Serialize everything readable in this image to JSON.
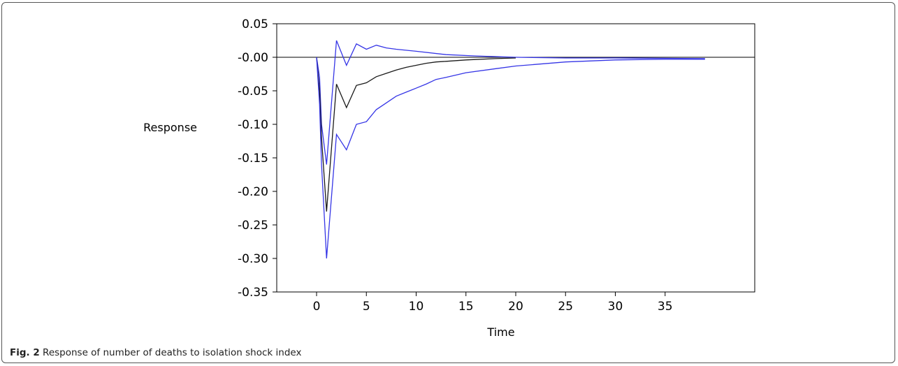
{
  "chart_data": {
    "type": "line",
    "title": "",
    "xlabel": "Time",
    "ylabel": "Response",
    "xlim": [
      -4,
      44
    ],
    "ylim": [
      -0.35,
      0.05
    ],
    "x_ticks": [
      0,
      5,
      10,
      15,
      20,
      25,
      30,
      35
    ],
    "y_ticks": [
      0.05,
      0.0,
      -0.05,
      -0.1,
      -0.15,
      -0.2,
      -0.25,
      -0.3,
      -0.35
    ],
    "y_tick_labels": [
      "0.05",
      "-0.00",
      "-0.05",
      "-0.10",
      "-0.15",
      "-0.20",
      "-0.25",
      "-0.30",
      "-0.35"
    ],
    "zero_line": true,
    "grid": false,
    "series": [
      {
        "role": "upper-band",
        "color": "#3535e6",
        "x": [
          0,
          0.3,
          0.5,
          1,
          2,
          3,
          4,
          5,
          6,
          7,
          8,
          10,
          13,
          16,
          20,
          25,
          30,
          39
        ],
        "y": [
          0.0,
          -0.03,
          -0.1,
          -0.16,
          0.025,
          -0.012,
          0.02,
          0.012,
          0.018,
          0.014,
          0.012,
          0.009,
          0.004,
          0.002,
          0.0,
          -0.001,
          -0.001,
          -0.002
        ]
      },
      {
        "role": "response",
        "color": "#1a1a1a",
        "x": [
          0,
          0.3,
          0.5,
          1,
          2,
          3,
          4,
          5,
          6,
          7,
          8,
          9,
          10,
          11,
          12,
          13,
          15,
          18,
          20
        ],
        "y": [
          0.0,
          -0.05,
          -0.12,
          -0.23,
          -0.04,
          -0.075,
          -0.042,
          -0.038,
          -0.029,
          -0.024,
          -0.019,
          -0.015,
          -0.012,
          -0.009,
          -0.007,
          -0.006,
          -0.004,
          -0.002,
          -0.001
        ]
      },
      {
        "role": "lower-band",
        "color": "#3535e6",
        "x": [
          0,
          0.3,
          0.5,
          1,
          2,
          3,
          4,
          5,
          6,
          7,
          8,
          9,
          10,
          11,
          12,
          13,
          15,
          18,
          20,
          25,
          30,
          35,
          39
        ],
        "y": [
          0.0,
          -0.07,
          -0.16,
          -0.3,
          -0.115,
          -0.138,
          -0.1,
          -0.096,
          -0.078,
          -0.068,
          -0.058,
          -0.052,
          -0.046,
          -0.04,
          -0.033,
          -0.03,
          -0.023,
          -0.017,
          -0.013,
          -0.007,
          -0.004,
          -0.003,
          -0.003
        ]
      }
    ]
  },
  "caption": {
    "label": "Fig. 2",
    "text": " Response of number of deaths to isolation shock index"
  }
}
